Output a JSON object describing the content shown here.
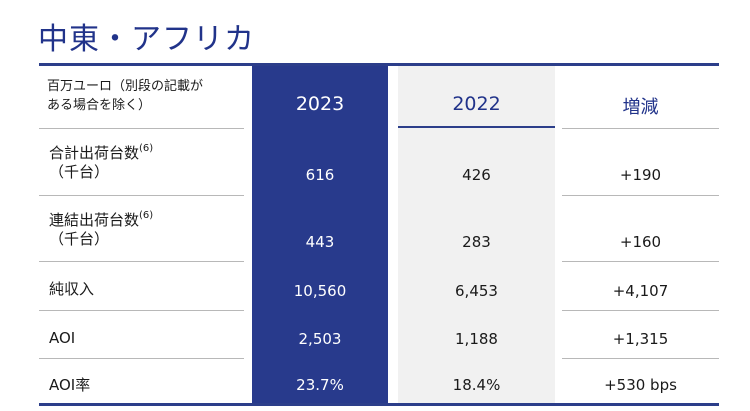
{
  "title": "中東・アフリカ",
  "header": {
    "unit_line1": "百万ユーロ（別段の記載が",
    "unit_line2": "ある場合を除く）",
    "col_2023": "2023",
    "col_2022": "2022",
    "col_change": "増減"
  },
  "rows": [
    {
      "label1": "合計出荷台数",
      "sup": "(6)",
      "label2": "（千台）",
      "v2023": "616",
      "v2022": "426",
      "change": "+190"
    },
    {
      "label1": "連結出荷台数",
      "sup": "(6)",
      "label2": "（千台）",
      "v2023": "443",
      "v2022": "283",
      "change": "+160"
    },
    {
      "label1": "純収入",
      "v2023": "10,560",
      "v2022": "6,453",
      "change": "+4,107"
    },
    {
      "label1": "AOI",
      "v2023": "2,503",
      "v2022": "1,188",
      "change": "+1,315"
    },
    {
      "label1": "AOI率",
      "v2023": "23.7%",
      "v2022": "18.4%",
      "change": "+530 bps"
    }
  ]
}
